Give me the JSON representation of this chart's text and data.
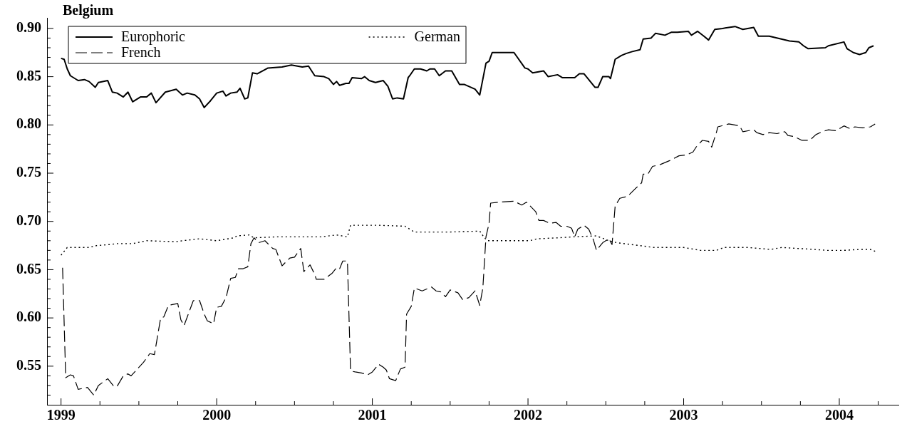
{
  "chart_data": {
    "type": "line",
    "title": "Belgium",
    "legend": "top left",
    "grid": false,
    "marker": "none",
    "xlim": [
      1998.91,
      2004.38
    ],
    "xticks": [
      1999,
      {
        "value": 1999.25,
        "label": null
      },
      {
        "value": 1999.5,
        "label": null
      },
      {
        "value": 1999.75,
        "label": null
      },
      2000,
      {
        "value": 2000.25,
        "label": null
      },
      {
        "value": 2000.5,
        "label": null
      },
      {
        "value": 2000.75,
        "label": null
      },
      2001,
      {
        "value": 2001.25,
        "label": null
      },
      {
        "value": 2001.5,
        "label": null
      },
      {
        "value": 2001.75,
        "label": null
      },
      2002,
      {
        "value": 2002.25,
        "label": null
      },
      {
        "value": 2002.5,
        "label": null
      },
      {
        "value": 2002.75,
        "label": null
      },
      2003,
      {
        "value": 2003.25,
        "label": null
      },
      {
        "value": 2003.5,
        "label": null
      },
      {
        "value": 2003.75,
        "label": null
      },
      2004,
      {
        "value": 2004.25,
        "label": null
      }
    ],
    "ylim": [
      0.51,
      0.911
    ],
    "yticks": [
      {
        "value": 0.52,
        "label": null
      },
      {
        "value": 0.53,
        "label": null
      },
      {
        "value": 0.54,
        "label": null
      },
      {
        "value": 0.55,
        "label": "0.55"
      },
      {
        "value": 0.56,
        "label": null
      },
      {
        "value": 0.57,
        "label": null
      },
      {
        "value": 0.58,
        "label": null
      },
      {
        "value": 0.59,
        "label": null
      },
      {
        "value": 0.6,
        "label": "0.60"
      },
      {
        "value": 0.61,
        "label": null
      },
      {
        "value": 0.62,
        "label": null
      },
      {
        "value": 0.63,
        "label": null
      },
      {
        "value": 0.64,
        "label": null
      },
      {
        "value": 0.65,
        "label": "0.65"
      },
      {
        "value": 0.66,
        "label": null
      },
      {
        "value": 0.67,
        "label": null
      },
      {
        "value": 0.68,
        "label": null
      },
      {
        "value": 0.69,
        "label": null
      },
      {
        "value": 0.7,
        "label": "0.70"
      },
      {
        "value": 0.71,
        "label": null
      },
      {
        "value": 0.72,
        "label": null
      },
      {
        "value": 0.73,
        "label": null
      },
      {
        "value": 0.74,
        "label": null
      },
      {
        "value": 0.75,
        "label": "0.75"
      },
      {
        "value": 0.76,
        "label": null
      },
      {
        "value": 0.77,
        "label": null
      },
      {
        "value": 0.78,
        "label": null
      },
      {
        "value": 0.79,
        "label": null
      },
      {
        "value": 0.8,
        "label": "0.80"
      },
      {
        "value": 0.81,
        "label": null
      },
      {
        "value": 0.82,
        "label": null
      },
      {
        "value": 0.83,
        "label": null
      },
      {
        "value": 0.84,
        "label": null
      },
      {
        "value": 0.85,
        "label": "0.85"
      },
      {
        "value": 0.86,
        "label": null
      },
      {
        "value": 0.87,
        "label": null
      },
      {
        "value": 0.88,
        "label": null
      },
      {
        "value": 0.89,
        "label": null
      },
      {
        "value": 0.9,
        "label": "0.90"
      }
    ],
    "series": [
      {
        "name": "Europhoric",
        "color": "#000000",
        "line_style": "solid",
        "x": [
          1999.0,
          1999.02,
          1999.04,
          1999.06,
          1999.11,
          1999.15,
          1999.18,
          1999.22,
          1999.24,
          1999.3,
          1999.33,
          1999.36,
          1999.4,
          1999.43,
          1999.46,
          1999.51,
          1999.55,
          1999.58,
          1999.61,
          1999.67,
          1999.74,
          1999.78,
          1999.81,
          1999.86,
          1999.89,
          1999.92,
          1999.96,
          2000.0,
          2000.04,
          2000.06,
          2000.09,
          2000.13,
          2000.15,
          2000.18,
          2000.2,
          2000.23,
          2000.26,
          2000.33,
          2000.42,
          2000.48,
          2000.55,
          2000.59,
          2000.63,
          2000.69,
          2000.72,
          2000.75,
          2000.77,
          2000.79,
          2000.83,
          2000.85,
          2000.87,
          2000.93,
          2000.95,
          2000.98,
          2001.02,
          2001.07,
          2001.1,
          2001.13,
          2001.16,
          2001.2,
          2001.23,
          2001.24,
          2001.27,
          2001.31,
          2001.35,
          2001.37,
          2001.4,
          2001.43,
          2001.47,
          2001.51,
          2001.56,
          2001.59,
          2001.66,
          2001.69,
          2001.73,
          2001.75,
          2001.77,
          2001.91,
          2001.98,
          2002.0,
          2002.03,
          2002.1,
          2002.13,
          2002.19,
          2002.22,
          2002.3,
          2002.33,
          2002.36,
          2002.39,
          2002.43,
          2002.45,
          2002.48,
          2002.52,
          2002.53,
          2002.56,
          2002.6,
          2002.63,
          2002.67,
          2002.72,
          2002.74,
          2002.79,
          2002.82,
          2002.88,
          2002.92,
          2002.96,
          2003.03,
          2003.05,
          2003.09,
          2003.13,
          2003.16,
          2003.2,
          2003.25,
          2003.33,
          2003.38,
          2003.45,
          2003.48,
          2003.55,
          2003.68,
          2003.74,
          2003.77,
          2003.8,
          2003.91,
          2003.93,
          2004.03,
          2004.05,
          2004.09,
          2004.13,
          2004.17,
          2004.19,
          2004.22
        ],
        "values": [
          0.869,
          0.868,
          0.858,
          0.851,
          0.846,
          0.847,
          0.845,
          0.839,
          0.844,
          0.846,
          0.834,
          0.833,
          0.829,
          0.834,
          0.824,
          0.829,
          0.829,
          0.833,
          0.823,
          0.834,
          0.837,
          0.831,
          0.833,
          0.831,
          0.827,
          0.818,
          0.825,
          0.833,
          0.835,
          0.83,
          0.833,
          0.834,
          0.838,
          0.827,
          0.828,
          0.854,
          0.853,
          0.859,
          0.86,
          0.862,
          0.86,
          0.861,
          0.851,
          0.85,
          0.848,
          0.842,
          0.845,
          0.841,
          0.843,
          0.843,
          0.849,
          0.848,
          0.85,
          0.846,
          0.844,
          0.846,
          0.84,
          0.827,
          0.828,
          0.827,
          0.849,
          0.851,
          0.858,
          0.858,
          0.856,
          0.858,
          0.858,
          0.851,
          0.856,
          0.856,
          0.842,
          0.842,
          0.837,
          0.831,
          0.864,
          0.866,
          0.875,
          0.875,
          0.859,
          0.858,
          0.854,
          0.856,
          0.85,
          0.852,
          0.849,
          0.849,
          0.853,
          0.853,
          0.847,
          0.839,
          0.839,
          0.85,
          0.85,
          0.848,
          0.868,
          0.872,
          0.874,
          0.876,
          0.878,
          0.889,
          0.89,
          0.895,
          0.893,
          0.896,
          0.896,
          0.897,
          0.893,
          0.897,
          0.892,
          0.888,
          0.899,
          0.9,
          0.902,
          0.899,
          0.901,
          0.892,
          0.892,
          0.887,
          0.886,
          0.882,
          0.879,
          0.88,
          0.882,
          0.886,
          0.879,
          0.875,
          0.873,
          0.875,
          0.88,
          0.882
        ]
      },
      {
        "name": "German",
        "color": "#000000",
        "line_style": "dotted",
        "x": [
          1999.0,
          1999.04,
          1999.18,
          1999.23,
          1999.31,
          1999.36,
          1999.46,
          1999.55,
          1999.74,
          1999.78,
          1999.89,
          2000.0,
          2000.11,
          2000.13,
          2000.21,
          2000.24,
          2000.39,
          2000.58,
          2000.67,
          2000.77,
          2000.84,
          2000.86,
          2001.04,
          2001.21,
          2001.27,
          2001.5,
          2001.69,
          2001.72,
          2001.74,
          2002.01,
          2002.06,
          2002.19,
          2002.29,
          2002.44,
          2002.52,
          2002.57,
          2002.81,
          2003.0,
          2003.11,
          2003.21,
          2003.26,
          2003.41,
          2003.56,
          2003.63,
          2003.84,
          2003.92,
          2004.03,
          2004.13,
          2004.2,
          2004.23
        ],
        "values": [
          0.665,
          0.673,
          0.673,
          0.675,
          0.676,
          0.677,
          0.677,
          0.68,
          0.679,
          0.68,
          0.682,
          0.68,
          0.683,
          0.685,
          0.686,
          0.683,
          0.684,
          0.684,
          0.684,
          0.686,
          0.684,
          0.696,
          0.696,
          0.695,
          0.689,
          0.689,
          0.69,
          0.683,
          0.68,
          0.68,
          0.682,
          0.683,
          0.684,
          0.685,
          0.68,
          0.678,
          0.673,
          0.673,
          0.67,
          0.67,
          0.673,
          0.673,
          0.671,
          0.673,
          0.671,
          0.67,
          0.67,
          0.671,
          0.671,
          0.669
        ]
      },
      {
        "name": "French",
        "color": "#000000",
        "line_style": "dashed",
        "x": [
          1999.01,
          1999.03,
          1999.06,
          1999.08,
          1999.11,
          1999.17,
          1999.21,
          1999.24,
          1999.3,
          1999.34,
          1999.36,
          1999.4,
          1999.43,
          1999.45,
          1999.49,
          1999.53,
          1999.57,
          1999.6,
          1999.64,
          1999.66,
          1999.69,
          1999.75,
          1999.77,
          1999.79,
          1999.85,
          1999.89,
          1999.92,
          1999.94,
          1999.98,
          2000.0,
          2000.03,
          2000.06,
          2000.09,
          2000.12,
          2000.14,
          2000.17,
          2000.2,
          2000.22,
          2000.24,
          2000.27,
          2000.31,
          2000.36,
          2000.38,
          2000.42,
          2000.47,
          2000.5,
          2000.54,
          2000.56,
          2000.6,
          2000.63,
          2000.64,
          2000.69,
          2000.74,
          2000.77,
          2000.79,
          2000.81,
          2000.84,
          2000.86,
          2000.89,
          2000.93,
          2000.97,
          2001.0,
          2001.04,
          2001.07,
          2001.09,
          2001.11,
          2001.15,
          2001.18,
          2001.21,
          2001.22,
          2001.25,
          2001.27,
          2001.32,
          2001.38,
          2001.41,
          2001.44,
          2001.47,
          2001.5,
          2001.55,
          2001.58,
          2001.62,
          2001.66,
          2001.69,
          2001.71,
          2001.73,
          2001.75,
          2001.76,
          2001.82,
          2001.91,
          2001.96,
          2001.99,
          2002.02,
          2002.05,
          2002.07,
          2002.1,
          2002.14,
          2002.18,
          2002.21,
          2002.25,
          2002.28,
          2002.3,
          2002.32,
          2002.36,
          2002.39,
          2002.42,
          2002.44,
          2002.48,
          2002.52,
          2002.54,
          2002.56,
          2002.59,
          2002.64,
          2002.69,
          2002.73,
          2002.74,
          2002.77,
          2002.8,
          2002.85,
          2002.91,
          2002.97,
          2003.02,
          2003.06,
          2003.08,
          2003.12,
          2003.16,
          2003.18,
          2003.21,
          2003.22,
          2003.29,
          2003.36,
          2003.38,
          2003.45,
          2003.47,
          2003.51,
          2003.55,
          2003.6,
          2003.65,
          2003.67,
          2003.71,
          2003.76,
          2003.81,
          2003.85,
          2003.89,
          2003.93,
          2003.98,
          2004.03,
          2004.07,
          2004.1,
          2004.15,
          2004.2,
          2004.23
        ],
        "values": [
          0.652,
          0.538,
          0.541,
          0.54,
          0.526,
          0.528,
          0.52,
          0.53,
          0.537,
          0.529,
          0.529,
          0.54,
          0.542,
          0.54,
          0.547,
          0.554,
          0.563,
          0.562,
          0.6,
          0.601,
          0.613,
          0.615,
          0.598,
          0.592,
          0.618,
          0.618,
          0.604,
          0.597,
          0.594,
          0.611,
          0.612,
          0.621,
          0.641,
          0.642,
          0.651,
          0.651,
          0.653,
          0.677,
          0.683,
          0.678,
          0.68,
          0.672,
          0.671,
          0.654,
          0.662,
          0.663,
          0.672,
          0.648,
          0.655,
          0.645,
          0.64,
          0.64,
          0.646,
          0.652,
          0.651,
          0.659,
          0.659,
          0.545,
          0.544,
          0.543,
          0.541,
          0.544,
          0.552,
          0.549,
          0.546,
          0.537,
          0.535,
          0.547,
          0.549,
          0.604,
          0.612,
          0.631,
          0.628,
          0.632,
          0.628,
          0.627,
          0.622,
          0.629,
          0.626,
          0.619,
          0.621,
          0.628,
          0.613,
          0.631,
          0.684,
          0.698,
          0.719,
          0.72,
          0.721,
          0.717,
          0.72,
          0.715,
          0.71,
          0.701,
          0.701,
          0.698,
          0.699,
          0.695,
          0.695,
          0.693,
          0.684,
          0.692,
          0.696,
          0.692,
          0.681,
          0.67,
          0.678,
          0.682,
          0.676,
          0.716,
          0.724,
          0.726,
          0.734,
          0.74,
          0.749,
          0.749,
          0.757,
          0.759,
          0.763,
          0.768,
          0.769,
          0.772,
          0.777,
          0.784,
          0.783,
          0.777,
          0.792,
          0.798,
          0.801,
          0.799,
          0.793,
          0.795,
          0.792,
          0.79,
          0.792,
          0.791,
          0.793,
          0.789,
          0.788,
          0.784,
          0.784,
          0.79,
          0.793,
          0.795,
          0.794,
          0.799,
          0.796,
          0.798,
          0.797,
          0.798,
          0.801
        ]
      }
    ]
  }
}
